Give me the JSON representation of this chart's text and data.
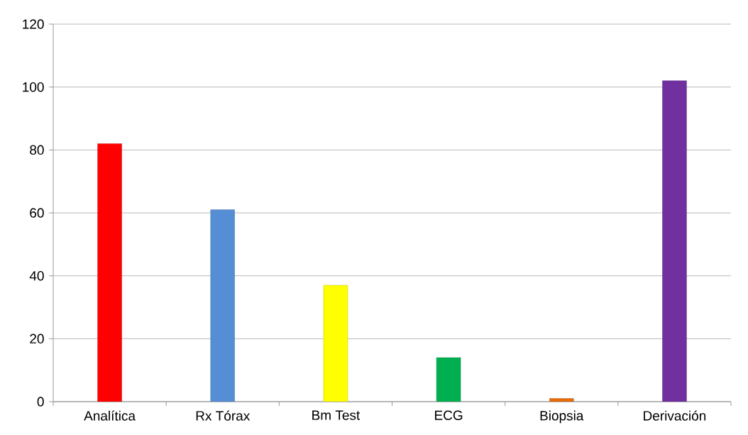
{
  "chart_data": {
    "type": "bar",
    "categories": [
      "Analítica",
      "Rx Tórax",
      "Bm Test",
      "ECG",
      "Biopsia",
      "Derivación"
    ],
    "values": [
      82,
      61,
      37,
      14,
      1,
      102
    ],
    "colors": [
      "#ff0000",
      "#558ed5",
      "#ffff00",
      "#00b050",
      "#e46c0a",
      "#7030a0"
    ],
    "ylim": [
      0,
      120
    ],
    "yticks": [
      0,
      20,
      40,
      60,
      80,
      100,
      120
    ],
    "grid": "y"
  }
}
